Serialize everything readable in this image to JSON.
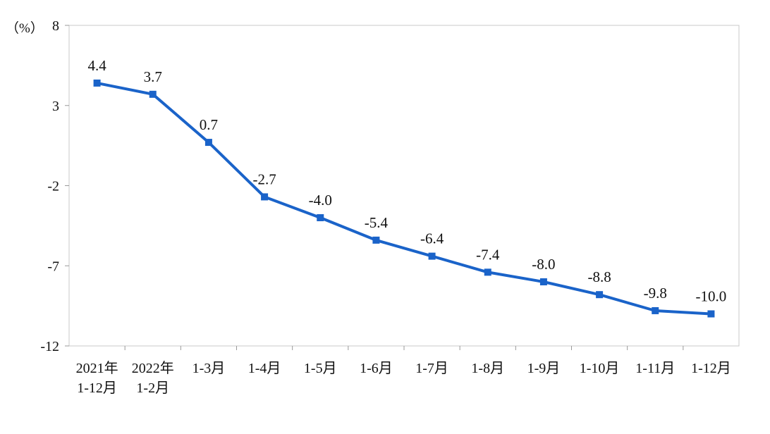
{
  "chart_data": {
    "type": "line",
    "unit_label": "（%）",
    "ylim": [
      -12,
      8
    ],
    "yticks": [
      8,
      3,
      -2,
      -7,
      -12
    ],
    "grid": false,
    "line_color": "#1a63c9",
    "categories": [
      [
        "2021年",
        "1-12月"
      ],
      [
        "2022年",
        "1-2月"
      ],
      [
        "1-3月"
      ],
      [
        "1-4月"
      ],
      [
        "1-5月"
      ],
      [
        "1-6月"
      ],
      [
        "1-7月"
      ],
      [
        "1-8月"
      ],
      [
        "1-9月"
      ],
      [
        "1-10月"
      ],
      [
        "1-11月"
      ],
      [
        "1-12月"
      ]
    ],
    "values": [
      4.4,
      3.7,
      0.7,
      -2.7,
      -4.0,
      -5.4,
      -6.4,
      -7.4,
      -8.0,
      -8.8,
      -9.8,
      -10.0
    ],
    "data_labels": [
      "4.4",
      "3.7",
      "0.7",
      "-2.7",
      "-4.0",
      "-5.4",
      "-6.4",
      "-7.4",
      "-8.0",
      "-8.8",
      "-9.8",
      "-10.0"
    ]
  }
}
